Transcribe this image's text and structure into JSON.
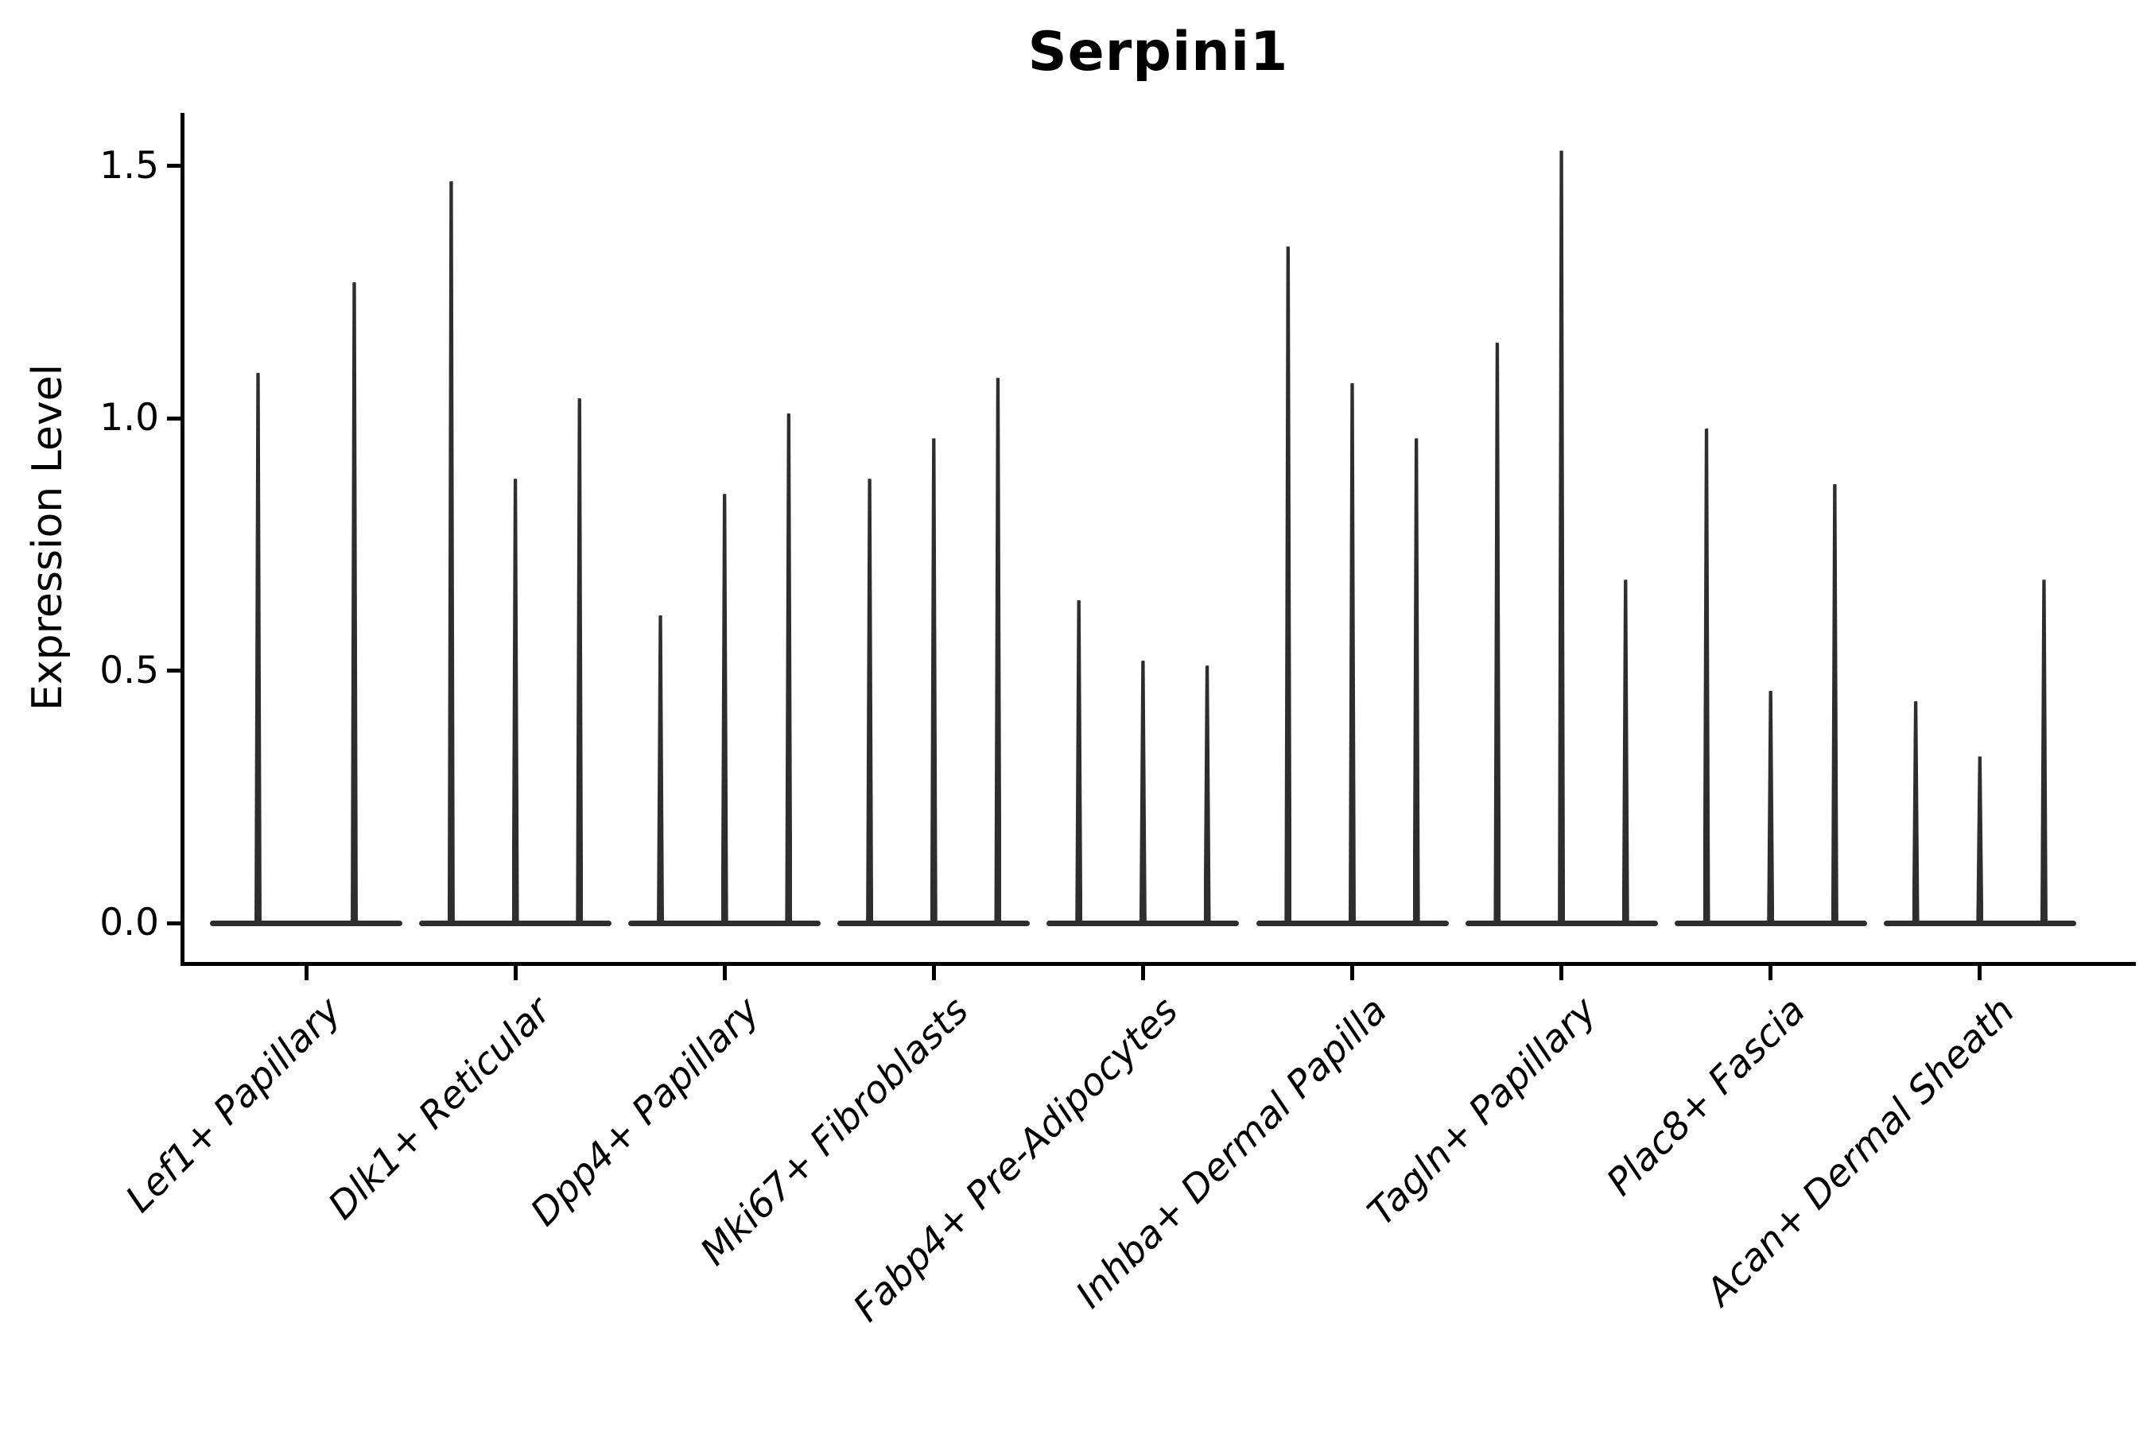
{
  "figure": {
    "background_color": "#ffffff",
    "ink_color": "#000000",
    "violin_color": "#2e2e2e"
  },
  "chart_data": {
    "type": "violin",
    "title": "Serpini1",
    "xlabel": "",
    "ylabel": "Expression Level",
    "ylim": [
      -0.08,
      1.62
    ],
    "grid": false,
    "legend": false,
    "ytick_values": [
      0.0,
      0.5,
      1.0,
      1.5
    ],
    "ytick_labels": [
      "0.0",
      "0.5",
      "1.0",
      "1.5"
    ],
    "categories": [
      "Lef1+ Papillary",
      "Dlk1+ Reticular",
      "Dpp4+ Papillary",
      "Mki67+ Fibroblasts",
      "Fabp4+ Pre-Adipocytes",
      "Inhba+ Dermal Papilla",
      "Tagln+ Papillary",
      "Plac8+ Fascia",
      "Acan+ Dermal Sheath"
    ],
    "description": "Thin violin spikes per category; expression density is concentrated at 0 (flat wide base) with narrow tails reaching the maxima below.",
    "violins": [
      {
        "category": "Lef1+ Papillary",
        "spike_maxima": [
          1.09,
          1.27
        ]
      },
      {
        "category": "Dlk1+ Reticular",
        "spike_maxima": [
          1.47,
          0.88,
          1.04
        ]
      },
      {
        "category": "Dpp4+ Papillary",
        "spike_maxima": [
          0.61,
          0.85,
          1.01
        ]
      },
      {
        "category": "Mki67+ Fibroblasts",
        "spike_maxima": [
          0.88,
          0.96,
          1.08
        ]
      },
      {
        "category": "Fabp4+ Pre-Adipocytes",
        "spike_maxima": [
          0.64,
          0.52,
          0.51
        ]
      },
      {
        "category": "Inhba+ Dermal Papilla",
        "spike_maxima": [
          1.34,
          1.07,
          0.96
        ]
      },
      {
        "category": "Tagln+ Papillary",
        "spike_maxima": [
          1.15,
          1.53,
          0.68
        ]
      },
      {
        "category": "Plac8+ Fascia",
        "spike_maxima": [
          0.98,
          0.46,
          0.87
        ]
      },
      {
        "category": "Acan+ Dermal Sheath",
        "spike_maxima": [
          0.44,
          0.33,
          0.68
        ]
      }
    ]
  }
}
